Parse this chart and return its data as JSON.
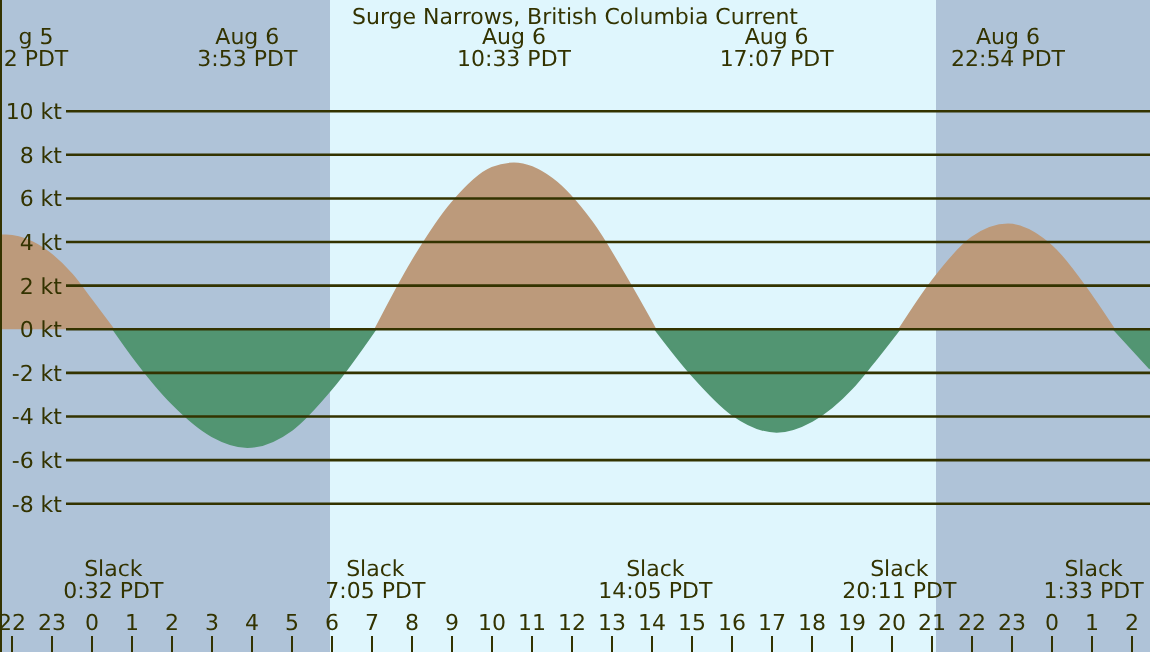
{
  "chart_data": {
    "type": "area",
    "title": "Surge Narrows, British Columbia Current",
    "x": [
      "--08-05T21:42",
      "--08-05T21:51",
      "--08-05T22:30",
      "--08-05T23:30",
      "--08-06T00:00",
      "--08-06T00:32",
      "--08-06T01:00",
      "--08-06T02:00",
      "--08-06T03:00",
      "--08-06T03:53",
      "--08-06T05:00",
      "--08-06T06:00",
      "--08-06T07:05",
      "--08-06T08:00",
      "--08-06T09:00",
      "--08-06T10:00",
      "--08-06T10:33",
      "--08-06T11:30",
      "--08-06T12:30",
      "--08-06T13:30",
      "--08-06T14:05",
      "--08-06T15:00",
      "--08-06T16:00",
      "--08-06T17:07",
      "--08-06T18:00",
      "--08-06T19:00",
      "--08-06T19:30",
      "--08-06T20:11",
      "--08-06T21:00",
      "--08-06T22:00",
      "--08-06T22:54",
      "--08-07T00:00",
      "--08-07T01:00",
      "--08-07T01:33",
      "--08-07T02:27"
    ],
    "series": [
      {
        "color": "#bc9a7b",
        "values": [
          4.3,
          4.3,
          4.0,
          2.5,
          1.3,
          0,
          null,
          null,
          null,
          null,
          null,
          null,
          0,
          3.1,
          5.8,
          7.4,
          7.6,
          6.9,
          4.9,
          1.9,
          0,
          null,
          null,
          null,
          null,
          null,
          null,
          0,
          2.2,
          4.2,
          4.8,
          3.8,
          1.5,
          0,
          null
        ]
      },
      {
        "color": "#529572",
        "values": [
          null,
          null,
          null,
          null,
          null,
          0,
          -1.2,
          -3.4,
          -4.9,
          -5.4,
          -4.6,
          -2.7,
          0,
          null,
          null,
          null,
          null,
          null,
          null,
          null,
          0,
          -2.1,
          -3.9,
          -4.7,
          -4.2,
          -2.7,
          -1.6,
          0,
          null,
          null,
          null,
          null,
          null,
          0,
          -1.8
        ]
      }
    ],
    "xlim": [
      "--08-05T21:42",
      "--08-07T02:27"
    ],
    "xticks": [
      {
        "value": "--08-05T22:00",
        "label": "22"
      },
      {
        "value": "--08-05T23:00",
        "label": "23"
      },
      {
        "value": "--08-06T00:00",
        "label": "0"
      },
      {
        "value": "--08-06T01:00",
        "label": "1"
      },
      {
        "value": "--08-06T02:00",
        "label": "2"
      },
      {
        "value": "--08-06T03:00",
        "label": "3"
      },
      {
        "value": "--08-06T04:00",
        "label": "4"
      },
      {
        "value": "--08-06T05:00",
        "label": "5"
      },
      {
        "value": "--08-06T06:00",
        "label": "6"
      },
      {
        "value": "--08-06T07:00",
        "label": "7"
      },
      {
        "value": "--08-06T08:00",
        "label": "8"
      },
      {
        "value": "--08-06T09:00",
        "label": "9"
      },
      {
        "value": "--08-06T10:00",
        "label": "10"
      },
      {
        "value": "--08-06T11:00",
        "label": "11"
      },
      {
        "value": "--08-06T12:00",
        "label": "12"
      },
      {
        "value": "--08-06T13:00",
        "label": "13"
      },
      {
        "value": "--08-06T14:00",
        "label": "14"
      },
      {
        "value": "--08-06T15:00",
        "label": "15"
      },
      {
        "value": "--08-06T16:00",
        "label": "16"
      },
      {
        "value": "--08-06T17:00",
        "label": "17"
      },
      {
        "value": "--08-06T18:00",
        "label": "18"
      },
      {
        "value": "--08-06T19:00",
        "label": "19"
      },
      {
        "value": "--08-06T20:00",
        "label": "20"
      },
      {
        "value": "--08-06T21:00",
        "label": "21"
      },
      {
        "value": "--08-06T22:00",
        "label": "22"
      },
      {
        "value": "--08-06T23:00",
        "label": "23"
      },
      {
        "value": "--08-07T00:00",
        "label": "0"
      },
      {
        "value": "--08-07T01:00",
        "label": "1"
      },
      {
        "value": "--08-07T02:00",
        "label": "2"
      }
    ],
    "ylim": [
      -14.8,
      15.1
    ],
    "yticks": [
      {
        "value": -8,
        "label": "-8 kt"
      },
      {
        "value": -6,
        "label": "-6 kt"
      },
      {
        "value": -4,
        "label": "-4 kt"
      },
      {
        "value": -2,
        "label": "-2 kt"
      },
      {
        "value": 0,
        "label": "0 kt"
      },
      {
        "value": 2,
        "label": "2 kt"
      },
      {
        "value": 4,
        "label": "4 kt"
      },
      {
        "value": 6,
        "label": "6 kt"
      },
      {
        "value": 8,
        "label": "8 kt"
      },
      {
        "value": 10,
        "label": "10 kt"
      }
    ],
    "grid": "y",
    "marker": "none",
    "bands": [
      {
        "axis": "x",
        "from": "--08-05T21:42",
        "to": "--08-06T05:57",
        "color": "#afc3d8"
      },
      {
        "axis": "x",
        "from": "--08-06T05:57",
        "to": "--08-06T21:06",
        "color": "#dff6fd"
      },
      {
        "axis": "x",
        "from": "--08-06T21:06",
        "to": "--08-07T02:27",
        "color": "#afc3d8"
      }
    ],
    "annotations": [
      "g 5\n2 PDT",
      "Aug 6\n3:53 PDT",
      "Aug 6\n10:33 PDT",
      "Aug 6\n17:07 PDT",
      "Aug 6\n22:54 PDT",
      "Slack\n0:32 PDT",
      "Slack\n7:05 PDT",
      "Slack\n14:05 PDT",
      "Slack\n20:11 PDT",
      "Slack\n1:33 PDT"
    ]
  }
}
